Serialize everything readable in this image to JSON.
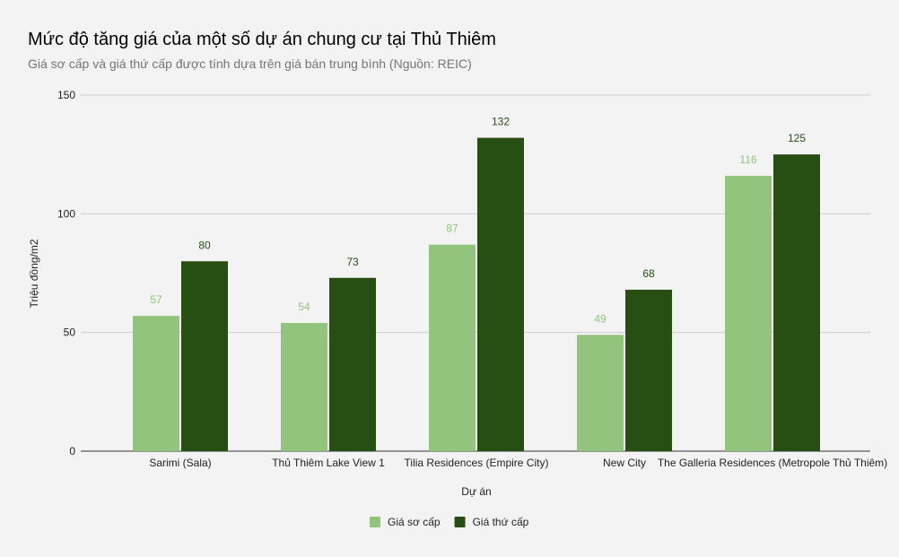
{
  "chart_data": {
    "type": "bar",
    "title": "Mức độ tăng giá của một số dự án chung cư tại Thủ Thiêm",
    "subtitle": "Giá sơ cấp và giá thứ cấp được tính dựa trên giá bán trung bình (Nguồn: REIC)",
    "xlabel": "Dự án",
    "ylabel": "Triệu đồng/m2",
    "ylim": [
      0,
      150
    ],
    "yticks": [
      0,
      50,
      100,
      150
    ],
    "grid": true,
    "legend_placement": "bottom",
    "categories": [
      "Sarimi (Sala)",
      "Thủ Thiêm Lake View 1",
      "Tilia Residences (Empire City)",
      "New City",
      "The Galleria Residences (Metropole Thủ Thiêm)"
    ],
    "series": [
      {
        "name": "Giá sơ cấp",
        "values": [
          57,
          54,
          87,
          49,
          116
        ],
        "color": "#93c47d",
        "label_color": "#93c47d"
      },
      {
        "name": "Giá thứ cấp",
        "values": [
          80,
          73,
          132,
          68,
          125
        ],
        "color": "#274e13",
        "label_color": "#274e13"
      }
    ],
    "background": "#f3f3f3"
  }
}
